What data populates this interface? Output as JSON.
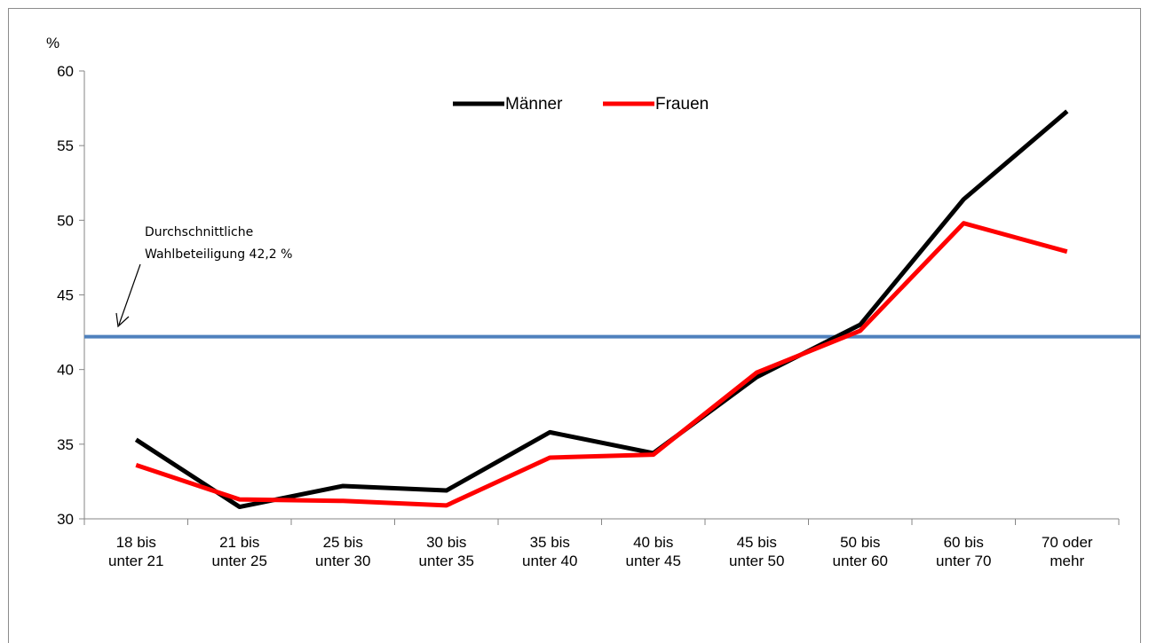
{
  "chart_data": {
    "type": "line",
    "ylabel": "%",
    "ylim": [
      30,
      60
    ],
    "yticks": [
      "30",
      "35",
      "40",
      "45",
      "50",
      "55",
      "60"
    ],
    "categories": [
      [
        "18 bis",
        "unter 21"
      ],
      [
        "21 bis",
        "unter 25"
      ],
      [
        "25 bis",
        "unter 30"
      ],
      [
        "30 bis",
        "unter 35"
      ],
      [
        "35 bis",
        "unter 40"
      ],
      [
        "40 bis",
        "unter 45"
      ],
      [
        "45 bis",
        "unter 50"
      ],
      [
        "50 bis",
        "unter 60"
      ],
      [
        "60 bis",
        "unter 70"
      ],
      [
        "70 oder",
        "mehr"
      ]
    ],
    "series": [
      {
        "name": "Männer",
        "color": "#000000",
        "values": [
          35.3,
          30.8,
          32.2,
          31.9,
          35.8,
          34.4,
          39.5,
          43.0,
          51.4,
          57.3
        ]
      },
      {
        "name": "Frauen",
        "color": "#ff0000",
        "values": [
          33.6,
          31.3,
          31.2,
          30.9,
          34.1,
          34.3,
          39.8,
          42.6,
          49.8,
          47.9
        ]
      }
    ],
    "reference_line": {
      "value": 42.2,
      "color": "#4f81bd"
    },
    "annotation": {
      "lines": [
        "Durchschnittliche",
        "Wahlbeteiligung 42,2 %"
      ]
    },
    "legend_position": "top-center",
    "grid": false
  }
}
